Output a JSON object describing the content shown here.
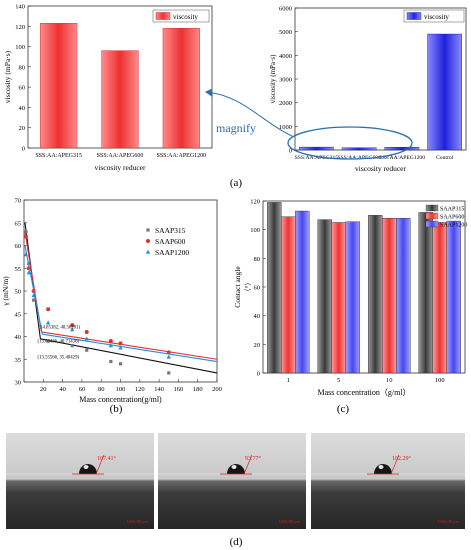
{
  "panel_labels": {
    "a": "(a)",
    "b": "(b)",
    "c": "(c)",
    "d": "(d)"
  },
  "chart_data": [
    {
      "id": "a_left",
      "type": "bar",
      "categories": [
        "SSS:AA:APEG315",
        "SSS:AA:APEG600",
        "SSS:AA:APEG1200"
      ],
      "values": [
        123,
        96,
        118
      ],
      "ylabel": "viscosity (mPa·s)",
      "xlabel": "viscosity reducer",
      "ylim": [
        0,
        140
      ],
      "yticks": [
        0,
        20,
        40,
        60,
        80,
        100,
        120,
        140
      ],
      "legend": "viscosity",
      "color": "#f05050"
    },
    {
      "id": "a_right",
      "type": "bar",
      "categories": [
        "SSS:AA:APEG315",
        "SSS:AA:APEG600",
        "SSS:AA:APEG1200",
        "Control"
      ],
      "values": [
        123,
        96,
        118,
        4900
      ],
      "ylabel": "viscosity (mPa·s)",
      "xlabel": "viscosity reducer",
      "ylim": [
        0,
        6000
      ],
      "yticks": [
        0,
        1000,
        2000,
        3000,
        4000,
        5000,
        6000
      ],
      "legend": "viscosity",
      "color": "#3a3ae0",
      "annotation": "magnify"
    },
    {
      "id": "b",
      "type": "scatter",
      "xlabel": "Mass concentration(g/ml)",
      "ylabel": "γ (mN/m)",
      "xlim": [
        0,
        200
      ],
      "ylim": [
        30,
        70
      ],
      "xticks": [
        20,
        40,
        60,
        80,
        100,
        120,
        140,
        160,
        180,
        200
      ],
      "yticks": [
        30,
        35,
        40,
        45,
        50,
        55,
        60,
        65,
        70
      ],
      "series": [
        {
          "name": "SAAP315",
          "marker": "square",
          "color": "#777777",
          "points": [
            [
              2,
              63
            ],
            [
              5,
              56
            ],
            [
              10,
              48
            ],
            [
              25,
              39
            ],
            [
              50,
              38
            ],
            [
              65,
              37
            ],
            [
              90,
              34.5
            ],
            [
              100,
              34
            ],
            [
              150,
              32
            ]
          ],
          "fit": [
            [
              [
                1,
                65
              ],
              [
                17,
                39.5
              ]
            ],
            [
              [
                17,
                39.5
              ],
              [
                200,
                32
              ]
            ]
          ]
        },
        {
          "name": "SAAP600",
          "marker": "circle",
          "color": "#e03030",
          "points": [
            [
              2,
              62
            ],
            [
              5,
              55
            ],
            [
              10,
              50
            ],
            [
              25,
              46
            ],
            [
              50,
              42.5
            ],
            [
              65,
              41
            ],
            [
              90,
              39
            ],
            [
              100,
              38.5
            ],
            [
              150,
              36.5
            ]
          ],
          "fit": [
            [
              [
                1,
                63
              ],
              [
                18,
                41
              ]
            ],
            [
              [
                18,
                41
              ],
              [
                200,
                35
              ]
            ]
          ]
        },
        {
          "name": "SAAP1200",
          "marker": "triangle",
          "color": "#1f8fdf",
          "points": [
            [
              2,
              58
            ],
            [
              5,
              54
            ],
            [
              10,
              49
            ],
            [
              25,
              43
            ],
            [
              50,
              41.5
            ],
            [
              65,
              39.5
            ],
            [
              90,
              38
            ],
            [
              100,
              37.5
            ],
            [
              150,
              35.5
            ]
          ],
          "fit": [
            [
              [
                1,
                60
              ],
              [
                19,
                40.5
              ]
            ],
            [
              [
                19,
                40.5
              ],
              [
                200,
                34.5
              ]
            ]
          ]
        }
      ],
      "annotations": [
        "(14.65382, 40.56281)",
        "(13.09436, 40.71436)",
        "(13.55566, 35.40429)"
      ]
    },
    {
      "id": "c",
      "type": "bar",
      "xlabel": "Mass concentration（g/ml）",
      "ylabel": "Contact angle\n（°）",
      "categories": [
        "1",
        "5",
        "10",
        "100"
      ],
      "ylim": [
        0,
        120
      ],
      "yticks": [
        0,
        20,
        40,
        60,
        80,
        100,
        120
      ],
      "series": [
        {
          "name": "SAAP315",
          "color": "#4a4a4a",
          "values": [
            119,
            107,
            110,
            112
          ]
        },
        {
          "name": "SAAP600",
          "color": "#ee3333",
          "values": [
            109,
            105,
            108,
            105
          ]
        },
        {
          "name": "SAAP1200",
          "color": "#4d4df0",
          "values": [
            113,
            105.5,
            108,
            106
          ]
        }
      ]
    }
  ],
  "photos": [
    {
      "angle_label": "107.41°",
      "scale_text": "1000.00 μm"
    },
    {
      "angle_label": "93.77°",
      "scale_text": "1000.00 μm"
    },
    {
      "angle_label": "102.29°",
      "scale_text": "1000.00 μm"
    }
  ]
}
